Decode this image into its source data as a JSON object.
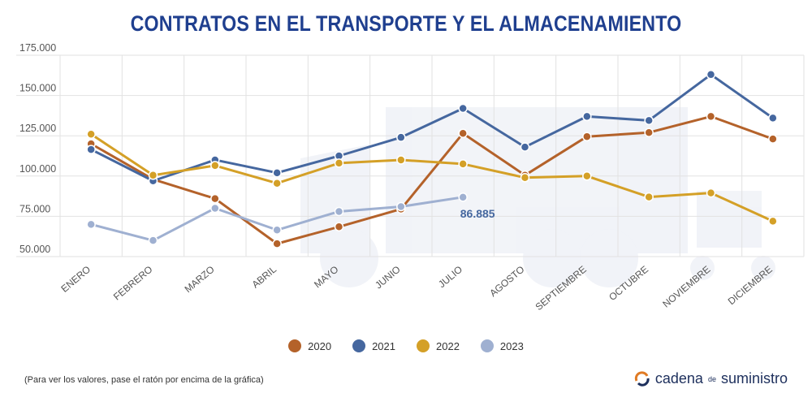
{
  "chart_data": {
    "type": "line",
    "title": "CONTRATOS EN EL TRANSPORTE Y EL ALMACENAMIENTO",
    "categories": [
      "ENERO",
      "FEBRERO",
      "MARZO",
      "ABRIL",
      "MAYO",
      "JUNIO",
      "JULIO",
      "AGOSTO",
      "SEPTIEMBRE",
      "OCTUBRE",
      "NOVIEMBRE",
      "DICIEMBRE"
    ],
    "y_ticks": [
      "50.000",
      "75.000",
      "100.000",
      "125.000",
      "150.000",
      "175.000"
    ],
    "ylim": [
      50000,
      175000
    ],
    "grid": true,
    "legend_position": "bottom",
    "series": [
      {
        "name": "2020",
        "color": "#b4622a",
        "values": [
          120000,
          98000,
          86000,
          58000,
          68500,
          79500,
          126500,
          100500,
          124500,
          127000,
          137000,
          123000
        ]
      },
      {
        "name": "2021",
        "color": "#45679f",
        "values": [
          116500,
          97000,
          110000,
          102000,
          112500,
          124000,
          142000,
          118000,
          137000,
          134500,
          163000,
          136000
        ]
      },
      {
        "name": "2022",
        "color": "#d4a027",
        "values": [
          126000,
          100500,
          106500,
          95500,
          108000,
          110000,
          107500,
          99000,
          100000,
          87000,
          89500,
          72000
        ]
      },
      {
        "name": "2023",
        "color": "#9fb0d1",
        "values": [
          70000,
          60000,
          80000,
          66500,
          78000,
          81000,
          86885,
          null,
          null,
          null,
          null,
          null
        ]
      }
    ],
    "annotation": {
      "text": "86.885",
      "series": "2023",
      "category": "JULIO"
    }
  },
  "footnote": "(Para ver los valores, pase el ratón por encima de la gráfica)",
  "brand": {
    "part1": "cadena",
    "part2": "de",
    "part3": "suministro"
  }
}
